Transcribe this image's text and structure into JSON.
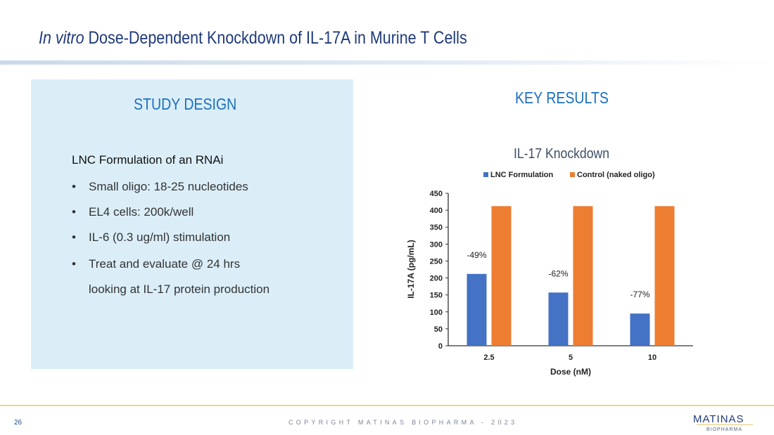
{
  "header": {
    "title_italic": "In vitro",
    "title_rest": " Dose-Dependent Knockdown of IL-17A in Murine T Cells"
  },
  "study": {
    "heading": "STUDY DESIGN",
    "lead": "LNC Formulation of an RNAi",
    "bullets": [
      "Small oligo:  18-25 nucleotides",
      "EL4 cells: 200k/well",
      "IL-6 (0.3 ug/ml) stimulation",
      "Treat and evaluate @ 24 hrs"
    ],
    "continuation": "looking at IL-17 protein production"
  },
  "results": {
    "heading": "KEY RESULTS"
  },
  "chart_data": {
    "type": "bar",
    "title": "IL-17 Knockdown",
    "categories": [
      "2.5",
      "5",
      "10"
    ],
    "series": [
      {
        "name": "LNC Formulation",
        "color": "#4472c4",
        "values": [
          212,
          157,
          95
        ],
        "labels": [
          "-49%",
          "-62%",
          "-77%"
        ]
      },
      {
        "name": "Control (naked oligo)",
        "color": "#ed7d31",
        "values": [
          412,
          412,
          412
        ]
      }
    ],
    "xlabel": "Dose  (nM)",
    "ylabel": "IL-17A (pg/mL)",
    "ylim": [
      0,
      450
    ],
    "yticks": [
      0,
      50,
      100,
      150,
      200,
      250,
      300,
      350,
      400,
      450
    ],
    "legend": "top",
    "grid": false
  },
  "footer": {
    "page": "26",
    "copyright": "COPYRIGHT MATINAS BIOPHARMA - 2023",
    "logo": "MATINAS",
    "logo_sub": "BIOPHARMA"
  }
}
